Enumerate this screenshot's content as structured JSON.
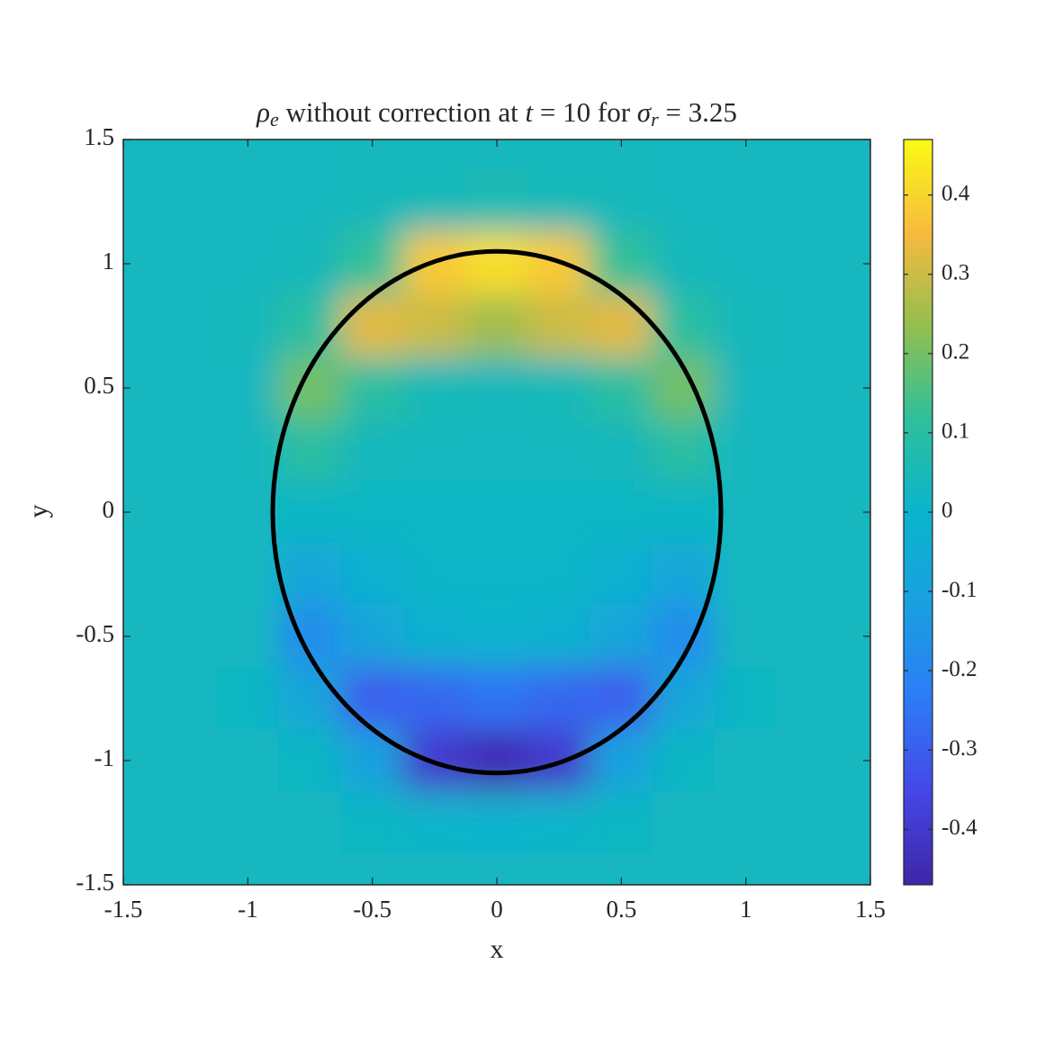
{
  "chart_data": {
    "type": "heatmap",
    "title": [
      {
        "text": "ρ",
        "italic": true
      },
      {
        "text": "e",
        "italic": true,
        "sub": true
      },
      {
        "text": " without correction at "
      },
      {
        "text": "t",
        "italic": true
      },
      {
        "text": " = 10 for "
      },
      {
        "text": "σ",
        "italic": true
      },
      {
        "text": "r",
        "italic": true,
        "sub": true
      },
      {
        "text": " = 3.25"
      }
    ],
    "x_label": "x",
    "y_label": "y",
    "colormap": "parula",
    "x": [
      -1.5,
      -1.25,
      -1,
      -0.75,
      -0.5,
      -0.25,
      0,
      0.25,
      0.5,
      0.75,
      1,
      1.25,
      1.5
    ],
    "y": [
      1.5,
      1.25,
      1,
      0.75,
      0.5,
      0.25,
      0,
      -0.25,
      -0.5,
      -0.75,
      -1,
      -1.25,
      -1.5
    ],
    "z": [
      [
        0.03,
        0.03,
        0.03,
        0.03,
        0.03,
        0.03,
        0.03,
        0.03,
        0.03,
        0.03,
        0.03,
        0.03,
        0.03
      ],
      [
        0.03,
        0.03,
        0.03,
        0.03,
        0.04,
        0.05,
        0.06,
        0.05,
        0.04,
        0.03,
        0.03,
        0.03,
        0.03
      ],
      [
        0.03,
        0.03,
        0.03,
        0.04,
        0.12,
        0.38,
        0.42,
        0.38,
        0.12,
        0.04,
        0.03,
        0.03,
        0.03
      ],
      [
        0.03,
        0.03,
        0.04,
        0.1,
        0.33,
        0.3,
        0.25,
        0.3,
        0.33,
        0.1,
        0.04,
        0.03,
        0.03
      ],
      [
        0.03,
        0.03,
        0.03,
        0.2,
        0.1,
        0.05,
        0.04,
        0.05,
        0.1,
        0.2,
        0.03,
        0.03,
        0.03
      ],
      [
        0.03,
        0.03,
        0.03,
        0.1,
        0.04,
        0.03,
        0.03,
        0.03,
        0.04,
        0.1,
        0.03,
        0.03,
        0.03
      ],
      [
        0.03,
        0.03,
        0.03,
        0.02,
        0.02,
        0.02,
        0.02,
        0.02,
        0.02,
        0.02,
        0.03,
        0.03,
        0.03
      ],
      [
        0.03,
        0.03,
        0.03,
        -0.08,
        -0.02,
        0.01,
        0.01,
        0.01,
        -0.02,
        -0.08,
        0.03,
        0.03,
        0.03
      ],
      [
        0.03,
        0.03,
        0.03,
        -0.18,
        -0.08,
        -0.02,
        -0.01,
        -0.02,
        -0.08,
        -0.18,
        0.03,
        0.03,
        0.03
      ],
      [
        0.03,
        0.03,
        0.02,
        -0.08,
        -0.3,
        -0.28,
        -0.25,
        -0.28,
        -0.3,
        -0.08,
        0.02,
        0.03,
        0.03
      ],
      [
        0.03,
        0.03,
        0.03,
        0.02,
        -0.1,
        -0.4,
        -0.45,
        -0.4,
        -0.1,
        0.02,
        0.03,
        0.03,
        0.03
      ],
      [
        0.03,
        0.03,
        0.03,
        0.03,
        0.02,
        0.0,
        -0.01,
        0.0,
        0.02,
        0.03,
        0.03,
        0.03,
        0.03
      ],
      [
        0.03,
        0.03,
        0.03,
        0.03,
        0.03,
        0.03,
        0.03,
        0.03,
        0.03,
        0.03,
        0.03,
        0.03,
        0.03
      ]
    ],
    "ellipse": {
      "center": [
        0,
        0
      ],
      "radii": [
        0.9,
        1.05
      ],
      "color": "#000000"
    },
    "xlim": [
      -1.5,
      1.5
    ],
    "ylim": [
      -1.5,
      1.5
    ],
    "xticks": [
      -1.5,
      -1,
      -0.5,
      0,
      0.5,
      1,
      1.5
    ],
    "yticks": [
      -1.5,
      -1,
      -0.5,
      0,
      0.5,
      1,
      1.5
    ],
    "clim": [
      -0.47,
      0.47
    ],
    "cticks": [
      -0.4,
      -0.3,
      -0.2,
      -0.1,
      0,
      0.1,
      0.2,
      0.3,
      0.4
    ]
  }
}
